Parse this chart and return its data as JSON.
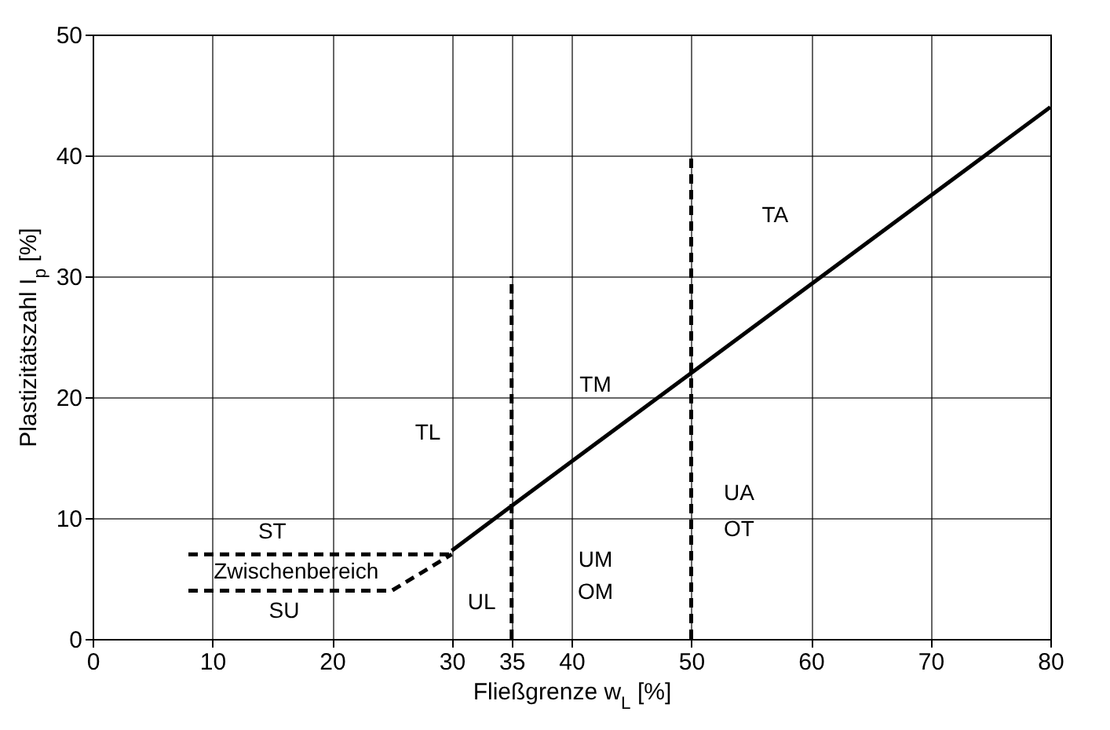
{
  "chart_data": {
    "type": "line",
    "xlabel": "Fließgrenze w$_{L}$ [%]",
    "ylabel": "Plastizitätszahl I$_{p}$ [%]",
    "xlim": [
      0,
      80
    ],
    "ylim": [
      0,
      50
    ],
    "xticks": [
      0,
      10,
      20,
      30,
      35,
      40,
      50,
      60,
      70,
      80
    ],
    "yticks": [
      0,
      10,
      20,
      30,
      40,
      50
    ],
    "grid": true,
    "series": [
      {
        "color": "#000000",
        "line_style": "solid",
        "x": [
          30,
          35,
          50,
          80
        ],
        "values": [
          7.3,
          11,
          22,
          44
        ]
      },
      {
        "color": "#000000",
        "line_style": "dashed",
        "x": [
          8,
          30
        ],
        "values": [
          7,
          7
        ]
      },
      {
        "color": "#000000",
        "line_style": "dashed",
        "x": [
          8,
          25,
          30
        ],
        "values": [
          4,
          4,
          7
        ]
      },
      {
        "color": "#000000",
        "line_style": "dashed",
        "x": [
          35,
          35
        ],
        "values": [
          0,
          30
        ]
      },
      {
        "color": "#000000",
        "line_style": "dashed",
        "x": [
          50,
          50
        ],
        "values": [
          0,
          40
        ]
      }
    ],
    "annotations": [
      "TA",
      "TM",
      "TL",
      "ST",
      "UA",
      "OT",
      "UM",
      "OM",
      "UL",
      "Zwischenbereich",
      "SU"
    ]
  }
}
